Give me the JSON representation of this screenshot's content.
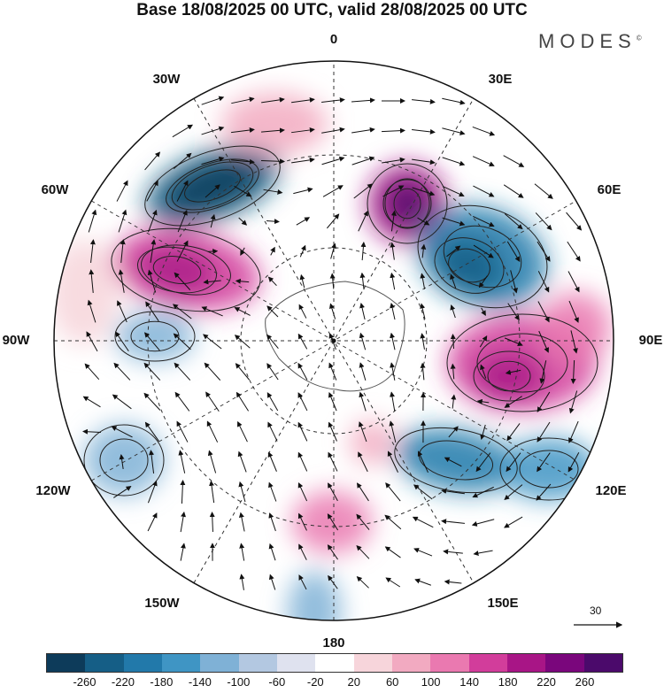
{
  "header": {
    "title": "Base 18/08/2025 00 UTC, valid 28/08/2025 00 UTC"
  },
  "brand": {
    "logo": "MODES",
    "mark": "©"
  },
  "map": {
    "projection": "south polar stereographic",
    "longitude_labels": [
      "0",
      "30E",
      "60E",
      "90E",
      "120E",
      "150E",
      "180",
      "150W",
      "120W",
      "90W",
      "60W",
      "30W"
    ]
  },
  "reference_vector": {
    "label": "30"
  },
  "colorbar": {
    "tick_labels": [
      "-260",
      "-220",
      "-180",
      "-140",
      "-100",
      "-60",
      "-20",
      "20",
      "60",
      "100",
      "140",
      "180",
      "220",
      "260"
    ],
    "colors": [
      "#0d3b5a",
      "#155e86",
      "#2279aa",
      "#3f95c4",
      "#7fb1d6",
      "#b3c8e1",
      "#dfe2ef",
      "#ffffff",
      "#f7d5db",
      "#f2aac1",
      "#ea79b0",
      "#d23d9b",
      "#a81586",
      "#7a067c",
      "#4b0a6b"
    ]
  }
}
